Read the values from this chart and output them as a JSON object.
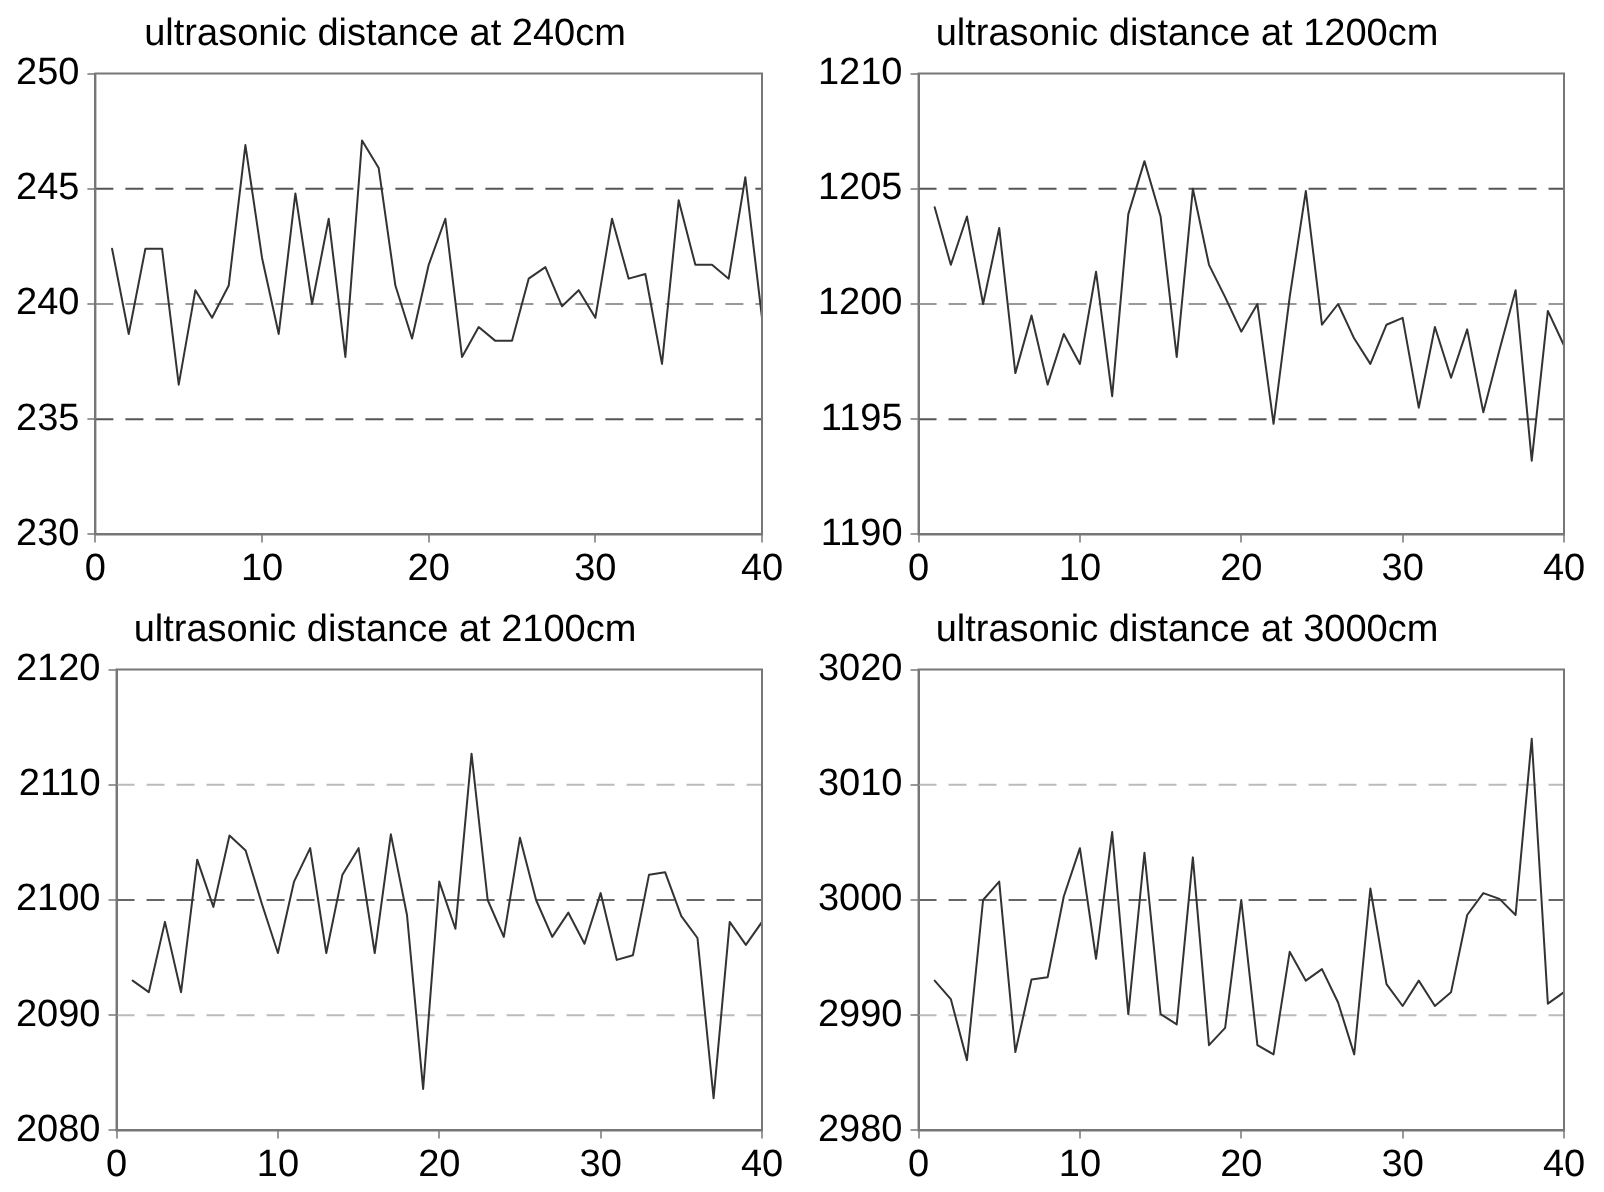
{
  "chart_data": [
    {
      "type": "line",
      "title": "ultrasonic distance at 240cm",
      "marker": "none",
      "line_style": "solid",
      "grid": false,
      "legend": false,
      "xlim": [
        0,
        40
      ],
      "xticks": [
        0,
        10,
        20,
        30,
        40
      ],
      "ylim": [
        230,
        250
      ],
      "yticks": [
        230,
        235,
        240,
        245,
        250
      ],
      "x": [
        1,
        2,
        3,
        4,
        5,
        6,
        7,
        8,
        9,
        10,
        11,
        12,
        13,
        14,
        15,
        16,
        17,
        18,
        19,
        20,
        21,
        22,
        23,
        24,
        25,
        26,
        27,
        28,
        29,
        30,
        31,
        32,
        33,
        34,
        35,
        36,
        37,
        38,
        39,
        40
      ],
      "series": [
        {
          "color": "#333333",
          "values": [
            242.4,
            238.7,
            242.4,
            242.4,
            236.5,
            240.6,
            239.4,
            240.8,
            246.9,
            242,
            238.7,
            244.8,
            240,
            243.7,
            237.7,
            247.1,
            245.9,
            240.8,
            238.5,
            241.7,
            243.7,
            237.7,
            239,
            238.4,
            238.4,
            241.1,
            241.6,
            239.9,
            240.6,
            239.4,
            243.7,
            241.1,
            241.3,
            237.4,
            244.5,
            241.7,
            241.7,
            241.1,
            245.5,
            239.4
          ]
        }
      ],
      "ref_lines": [
        {
          "axis": "y",
          "value": 245,
          "color": "#555555",
          "line_style": "dashed"
        },
        {
          "axis": "y",
          "value": 240,
          "color": "#999999",
          "line_style": "dashed"
        },
        {
          "axis": "y",
          "value": 235,
          "color": "#555555",
          "line_style": "dashed"
        }
      ]
    },
    {
      "type": "line",
      "title": "ultrasonic distance at 1200cm",
      "marker": "none",
      "line_style": "solid",
      "grid": false,
      "legend": false,
      "xlim": [
        0,
        40
      ],
      "xticks": [
        0,
        10,
        20,
        30,
        40
      ],
      "ylim": [
        1190,
        1210
      ],
      "yticks": [
        1190,
        1195,
        1200,
        1205,
        1210
      ],
      "x": [
        1,
        2,
        3,
        4,
        5,
        6,
        7,
        8,
        9,
        10,
        11,
        12,
        13,
        14,
        15,
        16,
        17,
        18,
        19,
        20,
        21,
        22,
        23,
        24,
        25,
        26,
        27,
        28,
        29,
        30,
        31,
        32,
        33,
        34,
        35,
        36,
        37,
        38,
        39,
        40
      ],
      "series": [
        {
          "color": "#333333",
          "values": [
            1204.2,
            1201.7,
            1203.8,
            1200,
            1203.3,
            1197,
            1199.5,
            1196.5,
            1198.7,
            1197.4,
            1201.4,
            1196,
            1203.9,
            1206.2,
            1203.8,
            1197.7,
            1205,
            1201.7,
            1200.3,
            1198.8,
            1200,
            1194.8,
            1200.3,
            1204.9,
            1199.1,
            1200,
            1198.5,
            1197.4,
            1199.1,
            1199.4,
            1195.5,
            1199,
            1196.8,
            1198.9,
            1195.3,
            1198,
            1200.6,
            1193.2,
            1199.7,
            1198.2
          ]
        }
      ],
      "ref_lines": [
        {
          "axis": "y",
          "value": 1205,
          "color": "#555555",
          "line_style": "dashed"
        },
        {
          "axis": "y",
          "value": 1200,
          "color": "#999999",
          "line_style": "dashed"
        },
        {
          "axis": "y",
          "value": 1195,
          "color": "#555555",
          "line_style": "dashed"
        }
      ]
    },
    {
      "type": "line",
      "title": "ultrasonic distance at 2100cm",
      "marker": "none",
      "line_style": "solid",
      "grid": false,
      "legend": false,
      "xlim": [
        0,
        40
      ],
      "xticks": [
        0,
        10,
        20,
        30,
        40
      ],
      "ylim": [
        2080,
        2120
      ],
      "yticks": [
        2080,
        2090,
        2100,
        2110,
        2120
      ],
      "x": [
        1,
        2,
        3,
        4,
        5,
        6,
        7,
        8,
        9,
        10,
        11,
        12,
        13,
        14,
        15,
        16,
        17,
        18,
        19,
        20,
        21,
        22,
        23,
        24,
        25,
        26,
        27,
        28,
        29,
        30,
        31,
        32,
        33,
        34,
        35,
        36,
        37,
        38,
        39,
        40
      ],
      "series": [
        {
          "color": "#333333",
          "values": [
            2093,
            2092,
            2098.1,
            2092,
            2103.5,
            2099.4,
            2105.6,
            2104.3,
            2099.7,
            2095.4,
            2101.6,
            2104.5,
            2095.4,
            2102.2,
            2104.5,
            2095.4,
            2105.7,
            2098.7,
            2083.6,
            2101.6,
            2097.5,
            2112.7,
            2100,
            2096.8,
            2105.4,
            2100,
            2096.8,
            2098.9,
            2096.2,
            2100.6,
            2094.8,
            2095.2,
            2102.2,
            2102.4,
            2098.6,
            2096.7,
            2082.8,
            2098.1,
            2096.1,
            2098.1
          ]
        }
      ],
      "ref_lines": [
        {
          "axis": "y",
          "value": 2110,
          "color": "#bbbbbb",
          "line_style": "dashed"
        },
        {
          "axis": "y",
          "value": 2100,
          "color": "#666666",
          "line_style": "dashed"
        },
        {
          "axis": "y",
          "value": 2090,
          "color": "#bbbbbb",
          "line_style": "dashed"
        }
      ]
    },
    {
      "type": "line",
      "title": "ultrasonic distance at 3000cm",
      "marker": "none",
      "line_style": "solid",
      "grid": false,
      "legend": false,
      "xlim": [
        0,
        40
      ],
      "xticks": [
        0,
        10,
        20,
        30,
        40
      ],
      "ylim": [
        2980,
        3020
      ],
      "yticks": [
        2980,
        2990,
        3000,
        3010,
        3020
      ],
      "x": [
        1,
        2,
        3,
        4,
        5,
        6,
        7,
        8,
        9,
        10,
        11,
        12,
        13,
        14,
        15,
        16,
        17,
        18,
        19,
        20,
        21,
        22,
        23,
        24,
        25,
        26,
        27,
        28,
        29,
        30,
        31,
        32,
        33,
        34,
        35,
        36,
        37,
        38,
        39,
        40
      ],
      "series": [
        {
          "color": "#333333",
          "values": [
            2993,
            2991.4,
            2986.1,
            3000,
            3001.6,
            2986.8,
            2993.1,
            2993.3,
            3000.3,
            3004.5,
            2994.9,
            3005.9,
            2990.1,
            3004.1,
            2990.1,
            2989.2,
            3003.7,
            2987.4,
            2988.9,
            3000,
            2987.4,
            2986.6,
            2995.5,
            2993,
            2994,
            2991.1,
            2986.6,
            3001,
            2992.7,
            2990.8,
            2993,
            2990.8,
            2992,
            2998.7,
            3000.6,
            3000.1,
            2998.7,
            3014,
            2991,
            2992
          ]
        }
      ],
      "ref_lines": [
        {
          "axis": "y",
          "value": 3010,
          "color": "#bbbbbb",
          "line_style": "dashed"
        },
        {
          "axis": "y",
          "value": 3000,
          "color": "#666666",
          "line_style": "dashed"
        },
        {
          "axis": "y",
          "value": 2990,
          "color": "#bbbbbb",
          "line_style": "dashed"
        }
      ]
    }
  ]
}
